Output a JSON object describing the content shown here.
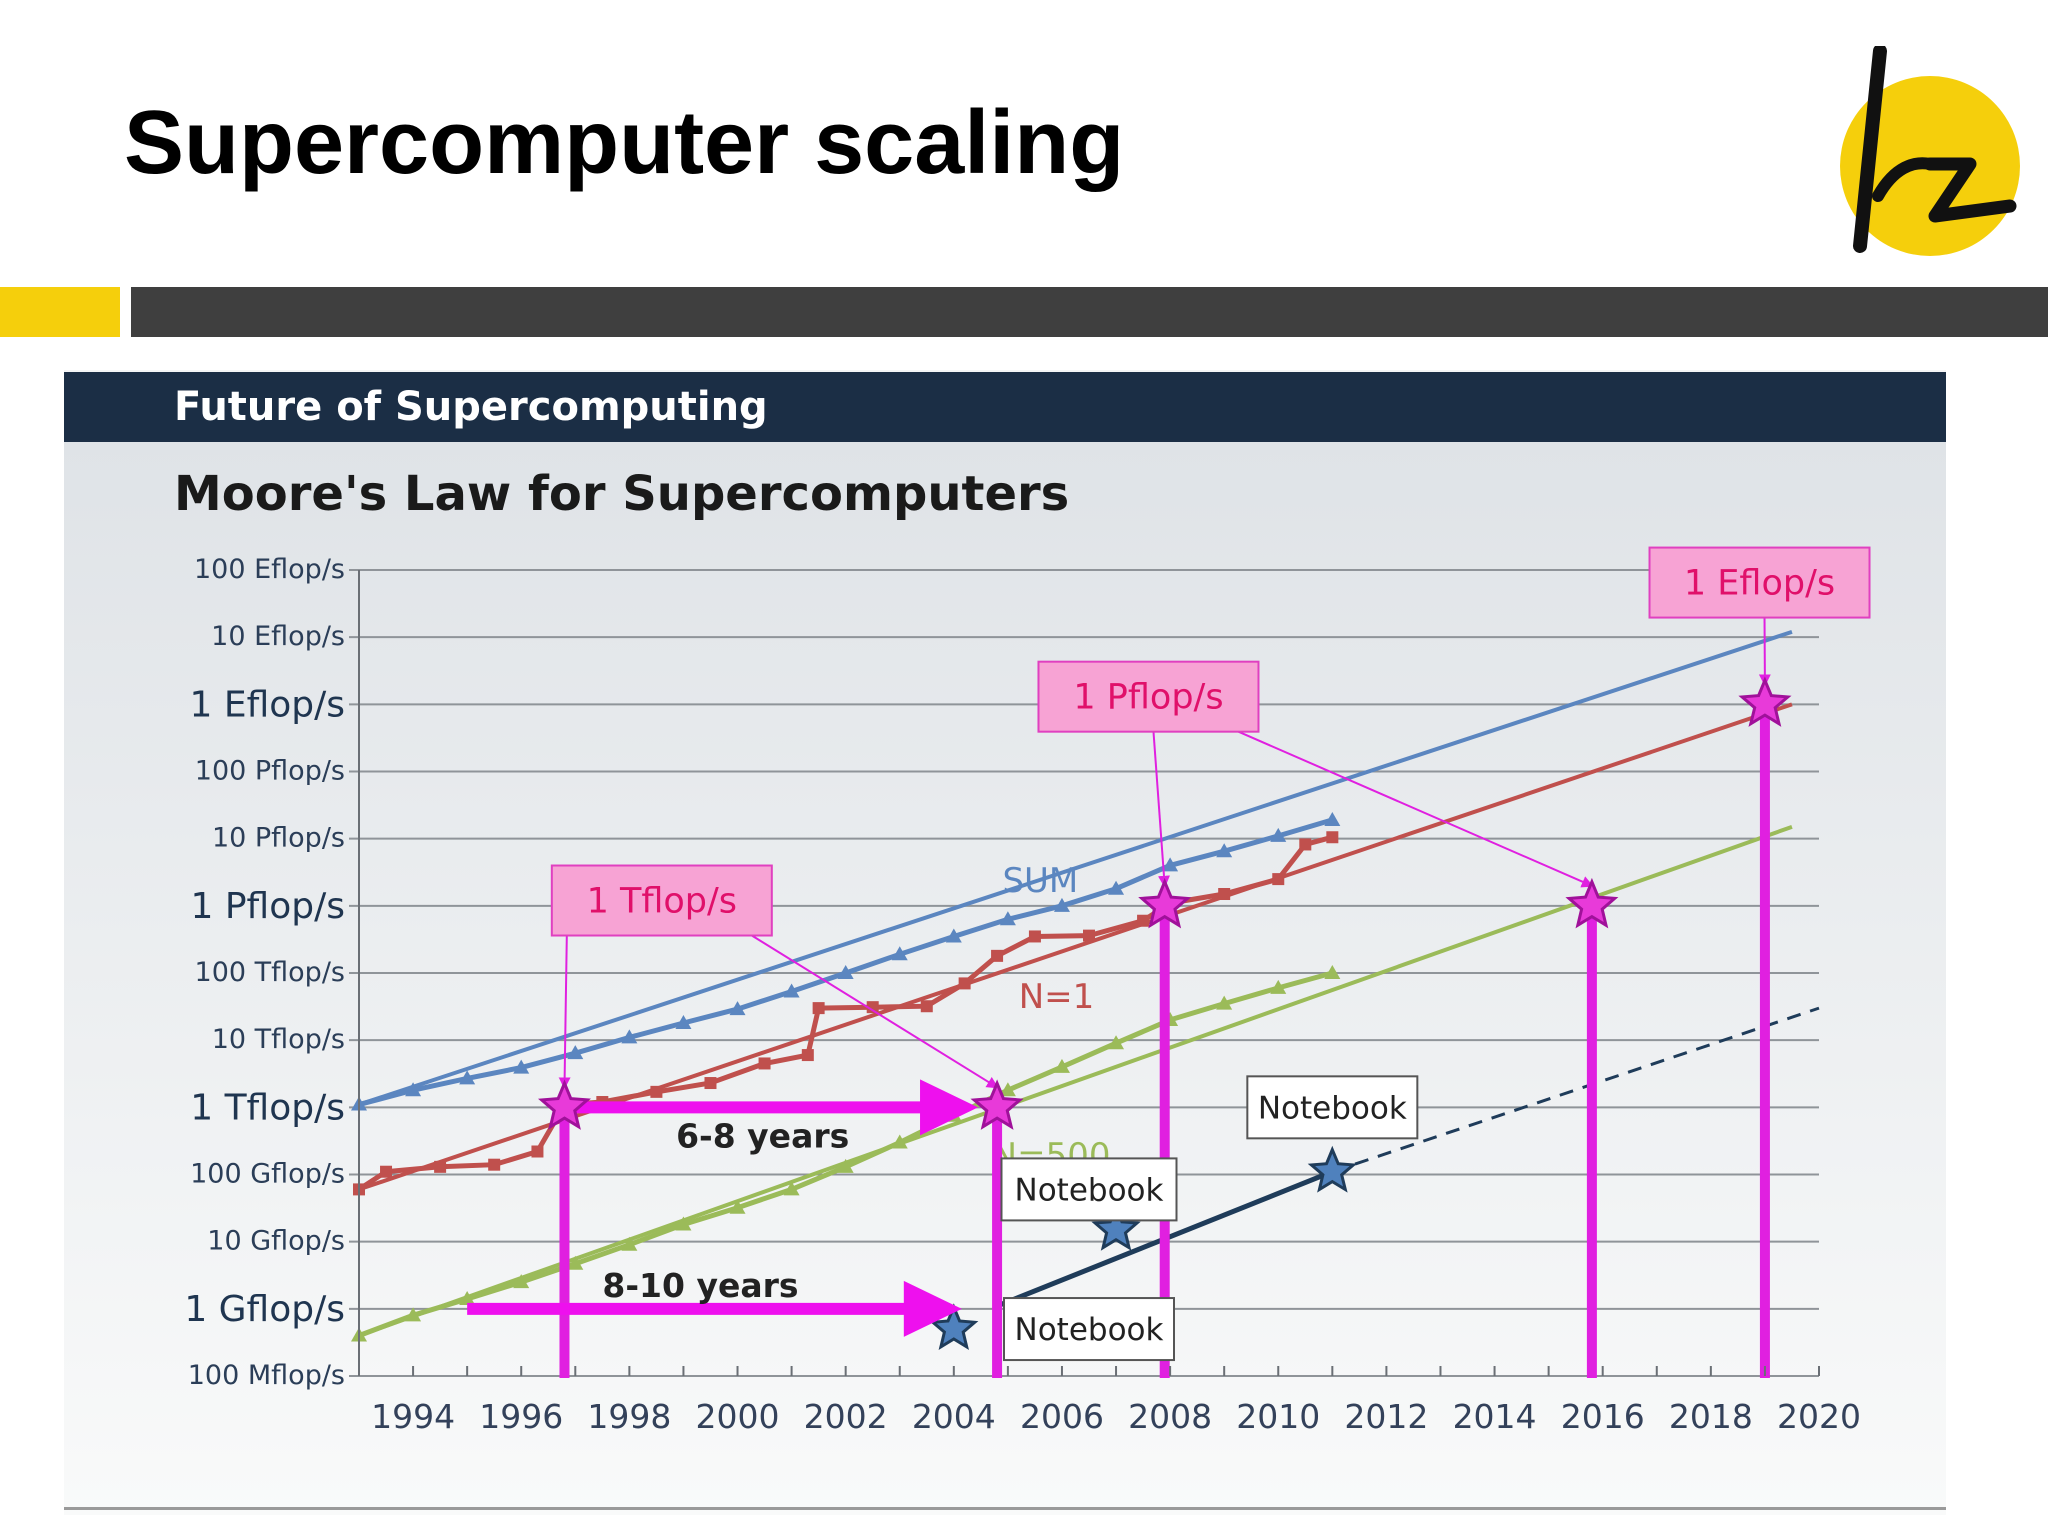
{
  "slide": {
    "title": "Supercomputer scaling",
    "logo_text": "lrz",
    "panel_header": "Future of Supercomputing",
    "colors": {
      "accent_yellow": "#f5cf0c",
      "bar_dark": "#3f3f3f",
      "header_navy": "#1b2e45"
    }
  },
  "chart_data": {
    "type": "line",
    "title": "Moore's Law for Supercomputers",
    "y_scale": "log",
    "x_range": [
      1993,
      2020
    ],
    "y_range_flops": [
      100000000.0,
      1e+20
    ],
    "grid": true,
    "y_ticks": [
      {
        "value": 100000000.0,
        "label": "100 Mflop/s",
        "major": false
      },
      {
        "value": 1000000000.0,
        "label": "1 Gflop/s",
        "major": true
      },
      {
        "value": 10000000000.0,
        "label": "10 Gflop/s",
        "major": false
      },
      {
        "value": 100000000000.0,
        "label": "100 Gflop/s",
        "major": false
      },
      {
        "value": 1000000000000.0,
        "label": "1 Tflop/s",
        "major": true
      },
      {
        "value": 10000000000000.0,
        "label": "10 Tflop/s",
        "major": false
      },
      {
        "value": 100000000000000.0,
        "label": "100 Tflop/s",
        "major": false
      },
      {
        "value": 1000000000000000.0,
        "label": "1 Pflop/s",
        "major": true
      },
      {
        "value": 1e+16,
        "label": "10 Pflop/s",
        "major": false
      },
      {
        "value": 1e+17,
        "label": "100 Pflop/s",
        "major": false
      },
      {
        "value": 1e+18,
        "label": "1 Eflop/s",
        "major": true
      },
      {
        "value": 1e+19,
        "label": "10 Eflop/s",
        "major": false
      },
      {
        "value": 1e+20,
        "label": "100 Eflop/s",
        "major": false
      }
    ],
    "x_ticks": [
      {
        "value": 1994,
        "label": "1994"
      },
      {
        "value": 1996,
        "label": "1996"
      },
      {
        "value": 1998,
        "label": "1998"
      },
      {
        "value": 2000,
        "label": "2000"
      },
      {
        "value": 2002,
        "label": "2002"
      },
      {
        "value": 2004,
        "label": "2004"
      },
      {
        "value": 2006,
        "label": "2006"
      },
      {
        "value": 2008,
        "label": "2008"
      },
      {
        "value": 2010,
        "label": "2010"
      },
      {
        "value": 2012,
        "label": "2012"
      },
      {
        "value": 2014,
        "label": "2014"
      },
      {
        "value": 2016,
        "label": "2016"
      },
      {
        "value": 2018,
        "label": "2018"
      },
      {
        "value": 2020,
        "label": "2020"
      }
    ],
    "series": [
      {
        "name": "SUM",
        "color": "#5b86c0",
        "data": [
          [
            1993.0,
            1100000000000.0
          ],
          [
            1994.0,
            1800000000000.0
          ],
          [
            1995.0,
            2700000000000.0
          ],
          [
            1996.0,
            3900000000000.0
          ],
          [
            1997.0,
            6400000000000.0
          ],
          [
            1998.0,
            11000000000000.0
          ],
          [
            1999.0,
            18000000000000.0
          ],
          [
            2000.0,
            29000000000000.0
          ],
          [
            2001.0,
            53000000000000.0
          ],
          [
            2002.0,
            100000000000000.0
          ],
          [
            2003.0,
            190000000000000.0
          ],
          [
            2004.0,
            350000000000000.0
          ],
          [
            2005.0,
            630000000000000.0
          ],
          [
            2006.0,
            1000000000000000.0
          ],
          [
            2007.0,
            1800000000000000.0
          ],
          [
            2008.0,
            4000000000000000.0
          ],
          [
            2009.0,
            6500000000000000.0
          ],
          [
            2010.0,
            1.1e+16
          ],
          [
            2011.0,
            1.9e+16
          ]
        ],
        "trend": [
          [
            1993.0,
            1100000000000.0
          ],
          [
            2019.5,
            1.2e+19
          ]
        ]
      },
      {
        "name": "N=1",
        "color": "#c0504d",
        "data": [
          [
            1993.0,
            60000000000.0
          ],
          [
            1993.5,
            110000000000.0
          ],
          [
            1994.5,
            130000000000.0
          ],
          [
            1995.5,
            140000000000.0
          ],
          [
            1996.3,
            220000000000.0
          ],
          [
            1996.8,
            1100000000000.0
          ],
          [
            1997.5,
            1200000000000.0
          ],
          [
            1998.5,
            1700000000000.0
          ],
          [
            1999.5,
            2300000000000.0
          ],
          [
            2000.5,
            4500000000000.0
          ],
          [
            2001.3,
            6000000000000.0
          ],
          [
            2001.5,
            30000000000000.0
          ],
          [
            2002.5,
            31000000000000.0
          ],
          [
            2003.5,
            32000000000000.0
          ],
          [
            2004.2,
            70000000000000.0
          ],
          [
            2004.8,
            180000000000000.0
          ],
          [
            2005.5,
            350000000000000.0
          ],
          [
            2006.5,
            360000000000000.0
          ],
          [
            2007.5,
            600000000000000.0
          ],
          [
            2008.0,
            1100000000000000.0
          ],
          [
            2009.0,
            1500000000000000.0
          ],
          [
            2010.0,
            2500000000000000.0
          ],
          [
            2010.5,
            8200000000000000.0
          ],
          [
            2011.0,
            1.05e+16
          ]
        ],
        "trend": [
          [
            1993.0,
            60000000000.0
          ],
          [
            2019.5,
            1e+18
          ]
        ]
      },
      {
        "name": "N=500",
        "color": "#9bbb59",
        "data": [
          [
            1993.0,
            400000000.0
          ],
          [
            1994.0,
            800000000.0
          ],
          [
            1995.0,
            1400000000.0
          ],
          [
            1996.0,
            2500000000.0
          ],
          [
            1997.0,
            4700000000.0
          ],
          [
            1998.0,
            9000000000.0
          ],
          [
            1999.0,
            18000000000.0
          ],
          [
            2000.0,
            32000000000.0
          ],
          [
            2001.0,
            60000000000.0
          ],
          [
            2002.0,
            130000000000.0
          ],
          [
            2003.0,
            300000000000.0
          ],
          [
            2004.0,
            750000000000.0
          ],
          [
            2005.0,
            1800000000000.0
          ],
          [
            2006.0,
            4000000000000.0
          ],
          [
            2007.0,
            9000000000000.0
          ],
          [
            2008.0,
            20000000000000.0
          ],
          [
            2009.0,
            35000000000000.0
          ],
          [
            2010.0,
            60000000000000.0
          ],
          [
            2011.0,
            100000000000000.0
          ]
        ],
        "trend": [
          [
            1993.0,
            400000000.0
          ],
          [
            2019.5,
            1.5e+16
          ]
        ]
      }
    ],
    "notebook_trend": {
      "color": "#1f3c5a",
      "solid": [
        [
          2004.8,
          1100000000.0
        ],
        [
          2011.0,
          110000000000.0
        ]
      ],
      "dashed": [
        [
          2011.0,
          110000000000.0
        ],
        [
          2020.0,
          30000000000000.0
        ]
      ],
      "stars": [
        [
          2004.0,
          500000000.0
        ],
        [
          2007.0,
          15000000000.0
        ],
        [
          2011.0,
          110000000000.0
        ]
      ]
    },
    "markers": [
      {
        "x": 1996.8,
        "y": 1000000000000.0,
        "drop_line": true
      },
      {
        "x": 2004.8,
        "y": 1000000000000.0,
        "drop_line": true
      },
      {
        "x": 2007.9,
        "y": 1000000000000000.0,
        "drop_line": true
      },
      {
        "x": 2015.8,
        "y": 1000000000000000.0,
        "drop_line": true
      },
      {
        "x": 2019.0,
        "y": 1e+18,
        "drop_line": true
      }
    ],
    "callouts": [
      {
        "text": "1 Tflop/s",
        "targets": [
          [
            1996.8,
            1000000000000.0
          ],
          [
            2004.8,
            1000000000000.0
          ]
        ]
      },
      {
        "text": "1 Pflop/s",
        "targets": [
          [
            2007.9,
            1000000000000000.0
          ],
          [
            2015.8,
            1000000000000000.0
          ]
        ]
      },
      {
        "text": "1 Eflop/s",
        "targets": [
          [
            2019.0,
            1e+18
          ]
        ]
      }
    ],
    "arrows": [
      {
        "label": "6-8 years",
        "from": [
          1997.0,
          1000000000000.0
        ],
        "to": [
          2004.3,
          1000000000000.0
        ]
      },
      {
        "label": "8-10 years",
        "from": [
          1995.0,
          1000000000.0
        ],
        "to": [
          2004.0,
          1000000000.0
        ]
      }
    ],
    "notebook_labels": [
      {
        "text": "Notebook",
        "x": 2011.0,
        "y": 1000000000000.0
      },
      {
        "text": "Notebook",
        "x": 2006.5,
        "y": 60000000000.0
      },
      {
        "text": "Notebook",
        "x": 2006.5,
        "y": 500000000.0
      }
    ]
  }
}
